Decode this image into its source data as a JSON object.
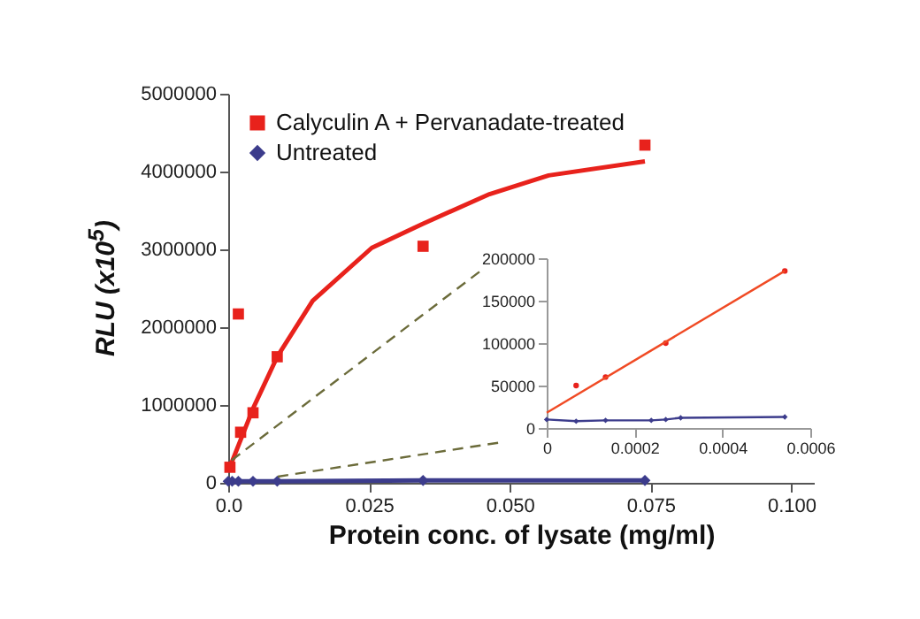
{
  "chart_data": [
    {
      "type": "scatter",
      "xlabel": "Protein conc. of lysate (mg/ml)",
      "ylabel": "RLU (x10$^{5}$)",
      "xlim": [
        0,
        0.104
      ],
      "ylim": [
        0,
        5000000
      ],
      "xticks": [
        {
          "value": 0,
          "label": "0.0"
        },
        0.025,
        {
          "value": 0.05,
          "label": "0.050"
        },
        0.075,
        {
          "value": 0.1,
          "label": "0.100"
        }
      ],
      "yticks": [
        0,
        1000000,
        2000000,
        3000000,
        4000000,
        5000000
      ],
      "legend": "top left",
      "grid": false,
      "series": [
        {
          "name": "Calyculin A + Pervanadate-treated",
          "marker": "square",
          "color": "#e8221c",
          "x": [
            0.0003,
            0.0018,
            0.0022,
            0.0044,
            0.0087,
            0.0346,
            0.074
          ],
          "values": [
            200000,
            2170000,
            650000,
            900000,
            1620000,
            3040000,
            4340000
          ]
        },
        {
          "type": "line",
          "color": "#e8221c",
          "x": [
            0,
            0.0045,
            0.0087,
            0.015,
            0.0255,
            0.0346,
            0.0464,
            0.0569,
            0.074
          ],
          "values": [
            150000,
            970000,
            1620000,
            2340000,
            3020000,
            3330000,
            3710000,
            3950000,
            4130000
          ]
        },
        {
          "name": "Untreated",
          "type": "line",
          "marker": "diamond",
          "color": "#3c3c8c",
          "x": [
            0,
            0.0007,
            0.0018,
            0.0044,
            0.0087,
            0.0346,
            0.074
          ],
          "values": [
            20000,
            20000,
            20000,
            20000,
            20000,
            30000,
            30000
          ]
        },
        {
          "type": "line",
          "line_style": "dashed",
          "color": "#6b6b3a",
          "x": [
            0.0006,
            0.0453
          ],
          "values": [
            290000,
            2750000
          ]
        },
        {
          "type": "line",
          "line_style": "dashed",
          "color": "#6b6b3a",
          "x": [
            0.0088,
            0.0484
          ],
          "values": [
            80000,
            520000
          ]
        }
      ]
    },
    {
      "type": "scatter",
      "xlim": [
        0,
        0.0006
      ],
      "ylim": [
        0,
        200000
      ],
      "xticks": [
        0,
        0.0002,
        0.0004,
        0.0006
      ],
      "yticks": [
        0,
        50000,
        100000,
        150000,
        200000
      ],
      "grid": false,
      "series": [
        {
          "marker": "circle",
          "color": "#e8221c",
          "x": [
            6.7e-05,
            0.000134,
            0.000271,
            0.000542
          ],
          "values": [
            50000,
            60000,
            100000,
            185000
          ]
        },
        {
          "type": "line",
          "color": "#f04a24",
          "x": [
            0,
            0.000542
          ],
          "values": [
            18000,
            185000
          ]
        },
        {
          "type": "line",
          "marker": "diamond",
          "color": "#3c3c8c",
          "x": [
            0,
            6.7e-05,
            0.000134,
            0.000238,
            0.000271,
            0.000305,
            0.000542
          ],
          "values": [
            10000,
            8000,
            9000,
            9000,
            10000,
            12000,
            13000
          ]
        }
      ]
    }
  ]
}
